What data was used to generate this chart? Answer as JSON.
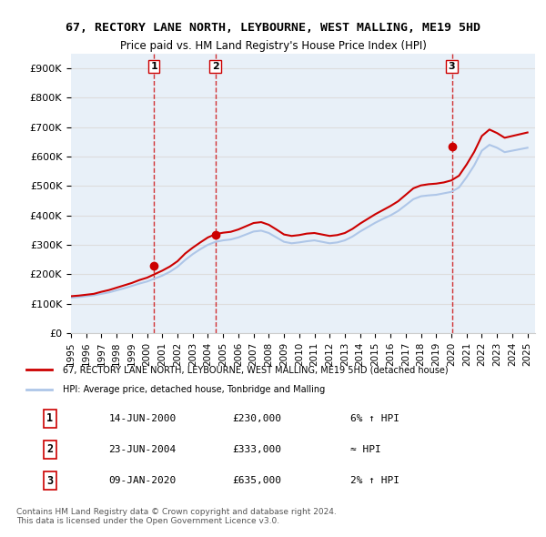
{
  "title": "67, RECTORY LANE NORTH, LEYBOURNE, WEST MALLING, ME19 5HD",
  "subtitle": "Price paid vs. HM Land Registry's House Price Index (HPI)",
  "xlabel": "",
  "ylabel": "",
  "ylim": [
    0,
    950000
  ],
  "yticks": [
    0,
    100000,
    200000,
    300000,
    400000,
    500000,
    600000,
    700000,
    800000,
    900000
  ],
  "ytick_labels": [
    "£0",
    "£100K",
    "£200K",
    "£300K",
    "£400K",
    "£500K",
    "£600K",
    "£700K",
    "£800K",
    "£900K"
  ],
  "sale_dates": [
    "2000-06-14",
    "2004-06-23",
    "2020-01-09"
  ],
  "sale_prices": [
    230000,
    333000,
    635000
  ],
  "sale_labels": [
    "1",
    "2",
    "3"
  ],
  "hpi_line_color": "#aec6e8",
  "price_line_color": "#cc0000",
  "sale_marker_color": "#cc0000",
  "vline_color": "#cc0000",
  "background_color": "#ffffff",
  "grid_color": "#dddddd",
  "legend_items": [
    "67, RECTORY LANE NORTH, LEYBOURNE, WEST MALLING, ME19 5HD (detached house)",
    "HPI: Average price, detached house, Tonbridge and Malling"
  ],
  "table_rows": [
    [
      "1",
      "14-JUN-2000",
      "£230,000",
      "6% ↑ HPI"
    ],
    [
      "2",
      "23-JUN-2004",
      "£333,000",
      "≈ HPI"
    ],
    [
      "3",
      "09-JAN-2020",
      "£635,000",
      "2% ↑ HPI"
    ]
  ],
  "footer_text": "Contains HM Land Registry data © Crown copyright and database right 2024.\nThis data is licensed under the Open Government Licence v3.0.",
  "hpi_years": [
    1995,
    1995.5,
    1996,
    1996.5,
    1997,
    1997.5,
    1998,
    1998.5,
    1999,
    1999.5,
    2000,
    2000.5,
    2001,
    2001.5,
    2002,
    2002.5,
    2003,
    2003.5,
    2004,
    2004.5,
    2005,
    2005.5,
    2006,
    2006.5,
    2007,
    2007.5,
    2008,
    2008.5,
    2009,
    2009.5,
    2010,
    2010.5,
    2011,
    2011.5,
    2012,
    2012.5,
    2013,
    2013.5,
    2014,
    2014.5,
    2015,
    2015.5,
    2016,
    2016.5,
    2017,
    2017.5,
    2018,
    2018.5,
    2019,
    2019.5,
    2020,
    2020.5,
    2021,
    2021.5,
    2022,
    2022.5,
    2023,
    2023.5,
    2024,
    2024.5,
    2025
  ],
  "hpi_values": [
    120000,
    122000,
    125000,
    128000,
    133000,
    138000,
    145000,
    152000,
    160000,
    168000,
    175000,
    185000,
    195000,
    208000,
    225000,
    248000,
    268000,
    285000,
    300000,
    310000,
    315000,
    318000,
    325000,
    335000,
    345000,
    348000,
    340000,
    325000,
    310000,
    305000,
    308000,
    312000,
    315000,
    310000,
    305000,
    308000,
    315000,
    328000,
    345000,
    360000,
    375000,
    388000,
    400000,
    415000,
    435000,
    455000,
    465000,
    468000,
    470000,
    475000,
    480000,
    495000,
    530000,
    570000,
    620000,
    640000,
    630000,
    615000,
    620000,
    625000,
    630000
  ],
  "price_years": [
    1995,
    1995.5,
    1996,
    1996.5,
    1997,
    1997.5,
    1998,
    1998.5,
    1999,
    1999.5,
    2000,
    2000.5,
    2001,
    2001.5,
    2002,
    2002.5,
    2003,
    2003.5,
    2004,
    2004.5,
    2005,
    2005.5,
    2006,
    2006.5,
    2007,
    2007.5,
    2008,
    2008.5,
    2009,
    2009.5,
    2010,
    2010.5,
    2011,
    2011.5,
    2012,
    2012.5,
    2013,
    2013.5,
    2014,
    2014.5,
    2015,
    2015.5,
    2016,
    2016.5,
    2017,
    2017.5,
    2018,
    2018.5,
    2019,
    2019.5,
    2020,
    2020.5,
    2021,
    2021.5,
    2022,
    2022.5,
    2023,
    2023.5,
    2024,
    2024.5,
    2025
  ],
  "price_values": [
    125000,
    127000,
    130000,
    133000,
    140000,
    146000,
    154000,
    162000,
    170000,
    180000,
    188000,
    200000,
    212000,
    226000,
    244000,
    270000,
    290000,
    308000,
    325000,
    336000,
    341000,
    344000,
    352000,
    363000,
    374000,
    377000,
    368000,
    352000,
    335000,
    330000,
    333000,
    338000,
    340000,
    335000,
    330000,
    333000,
    340000,
    354000,
    372000,
    388000,
    404000,
    418000,
    432000,
    448000,
    470000,
    492000,
    502000,
    506000,
    508000,
    512000,
    519000,
    535000,
    573000,
    616000,
    670000,
    692000,
    680000,
    664000,
    670000,
    676000,
    682000
  ],
  "xlim_start": 1995,
  "xlim_end": 2025.5,
  "xticks": [
    1995,
    1996,
    1997,
    1998,
    1999,
    2000,
    2001,
    2002,
    2003,
    2004,
    2005,
    2006,
    2007,
    2008,
    2009,
    2010,
    2011,
    2012,
    2013,
    2014,
    2015,
    2016,
    2017,
    2018,
    2019,
    2020,
    2021,
    2022,
    2023,
    2024,
    2025
  ]
}
